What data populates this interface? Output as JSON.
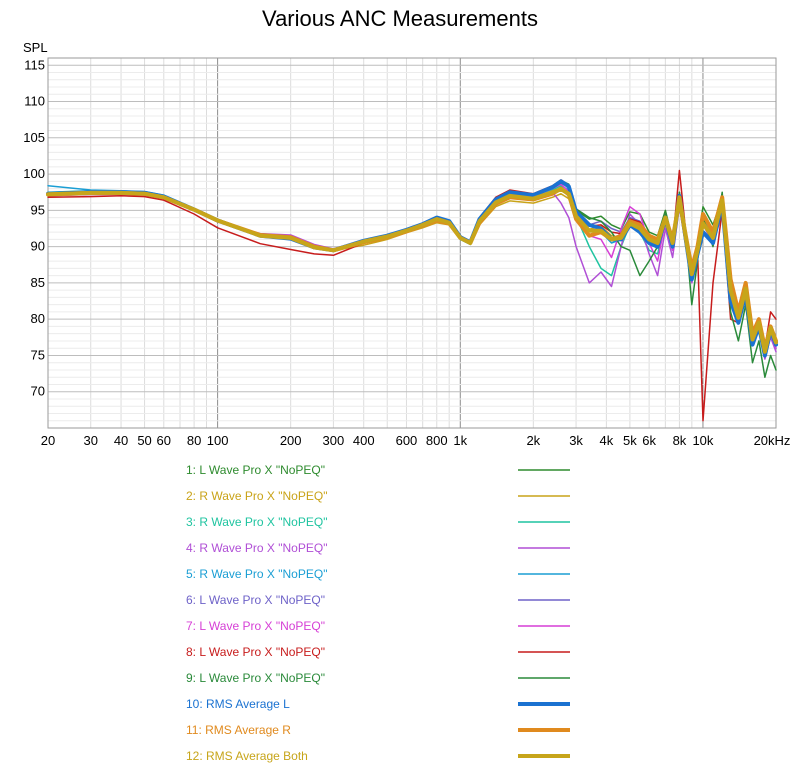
{
  "chart_data": {
    "type": "line",
    "title": "Various ANC Measurements",
    "ylabel": "SPL",
    "xlabel": "",
    "xscale": "log",
    "xlim": [
      20,
      20000
    ],
    "ylim": [
      65,
      116
    ],
    "grid": true,
    "legend_placement": "below",
    "x_ticks": [
      20,
      30,
      40,
      50,
      60,
      80,
      100,
      200,
      300,
      400,
      600,
      800,
      1000,
      2000,
      3000,
      4000,
      5000,
      6000,
      8000,
      10000,
      20000
    ],
    "x_tick_labels": [
      "20",
      "30",
      "40",
      "50",
      "60",
      "80",
      "100",
      "200",
      "300",
      "400",
      "600",
      "800",
      "1k",
      "2k",
      "3k",
      "4k",
      "5k",
      "6k",
      "8k",
      "10k",
      "20kHz"
    ],
    "y_ticks": [
      70,
      75,
      80,
      85,
      90,
      95,
      100,
      105,
      110,
      115
    ],
    "y_tick_labels": [
      "70",
      "75",
      "80",
      "85",
      "90",
      "95",
      "100",
      "105",
      "110",
      "115"
    ],
    "x": [
      20,
      30,
      40,
      50,
      60,
      80,
      100,
      150,
      200,
      250,
      300,
      400,
      500,
      600,
      700,
      800,
      900,
      1000,
      1100,
      1200,
      1400,
      1600,
      2000,
      2400,
      2600,
      2800,
      3000,
      3400,
      3800,
      4200,
      4600,
      5000,
      5500,
      6000,
      6500,
      7000,
      7500,
      8000,
      8500,
      9000,
      9500,
      10000,
      11000,
      12000,
      13000,
      14000,
      15000,
      16000,
      17000,
      18000,
      19000,
      20000
    ],
    "series": [
      {
        "name": "1: L Wave Pro X \"NoPEQ\"",
        "color": "#2e8b2e",
        "width": 1.5,
        "values": [
          97.2,
          97.4,
          97.5,
          97.4,
          96.9,
          95.1,
          93.6,
          91.5,
          91.0,
          89.9,
          89.6,
          90.8,
          91.5,
          92.3,
          93.2,
          94.1,
          93.6,
          91.5,
          90.5,
          93.8,
          96.5,
          97.3,
          97.0,
          98.3,
          99.0,
          98.5,
          95.0,
          93.8,
          94.2,
          93.0,
          92.4,
          94.8,
          94.5,
          92.0,
          91.5,
          95.0,
          91.0,
          97.5,
          92.0,
          87.0,
          90.5,
          95.5,
          93.0,
          96.8,
          86.0,
          81.0,
          85.0,
          78.0,
          80.0,
          76.0,
          79.0,
          77.0
        ]
      },
      {
        "name": "2: R Wave Pro X \"NoPEQ\"",
        "color": "#c9a318",
        "width": 1.5,
        "values": [
          97.0,
          97.2,
          97.2,
          97.1,
          96.6,
          95.0,
          93.5,
          91.6,
          91.2,
          90.1,
          89.5,
          90.2,
          91.0,
          91.9,
          92.6,
          93.3,
          93.0,
          91.2,
          90.8,
          93.0,
          95.5,
          96.3,
          96.0,
          96.8,
          97.3,
          96.6,
          94.0,
          92.4,
          92.8,
          91.5,
          91.2,
          92.8,
          92.6,
          90.8,
          90.2,
          93.0,
          89.8,
          95.5,
          90.5,
          86.5,
          89.5,
          93.5,
          91.0,
          95.0,
          85.0,
          80.5,
          84.0,
          77.0,
          79.0,
          75.5,
          78.0,
          76.5
        ]
      },
      {
        "name": "3: R Wave Pro X \"NoPEQ\"",
        "color": "#1fc4a0",
        "width": 1.5,
        "values": [
          97.5,
          97.7,
          97.6,
          97.5,
          97.0,
          95.2,
          93.7,
          91.4,
          91.0,
          89.8,
          89.4,
          90.6,
          91.3,
          92.2,
          93.0,
          93.9,
          93.4,
          91.0,
          90.3,
          93.4,
          96.2,
          97.0,
          96.6,
          97.8,
          98.4,
          97.8,
          94.2,
          90.0,
          87.0,
          86.0,
          90.0,
          93.0,
          92.0,
          89.5,
          89.0,
          93.5,
          89.5,
          96.5,
          91.0,
          86.0,
          89.0,
          94.0,
          91.5,
          95.5,
          85.5,
          80.5,
          84.5,
          77.5,
          79.5,
          75.0,
          78.5,
          76.0
        ]
      },
      {
        "name": "4: R Wave Pro X \"NoPEQ\"",
        "color": "#b04fd6",
        "width": 1.5,
        "values": [
          97.3,
          97.5,
          97.5,
          97.3,
          96.8,
          95.0,
          93.4,
          91.8,
          91.6,
          90.3,
          89.7,
          90.9,
          91.6,
          92.4,
          93.2,
          94.0,
          93.5,
          91.3,
          90.6,
          93.6,
          96.3,
          97.2,
          96.9,
          97.5,
          96.0,
          94.0,
          90.0,
          85.0,
          86.5,
          84.5,
          90.0,
          94.5,
          93.0,
          89.0,
          86.0,
          92.5,
          88.5,
          95.5,
          90.0,
          85.0,
          88.5,
          93.0,
          90.5,
          94.5,
          84.0,
          80.0,
          83.5,
          76.5,
          78.5,
          74.5,
          77.5,
          75.5
        ]
      },
      {
        "name": "5: R Wave Pro X \"NoPEQ\"",
        "color": "#1a9ed4",
        "width": 1.5,
        "values": [
          98.4,
          97.8,
          97.7,
          97.6,
          97.1,
          95.3,
          93.8,
          91.6,
          91.3,
          90.0,
          89.5,
          90.7,
          91.4,
          92.2,
          93.0,
          93.8,
          93.3,
          91.2,
          90.4,
          93.5,
          96.4,
          97.4,
          97.1,
          98.2,
          99.0,
          98.0,
          94.5,
          91.5,
          92.0,
          90.5,
          91.0,
          93.0,
          92.5,
          90.5,
          89.8,
          94.0,
          90.0,
          96.5,
          91.0,
          86.0,
          89.0,
          94.0,
          91.5,
          95.5,
          85.0,
          80.5,
          84.0,
          77.0,
          79.5,
          75.5,
          78.0,
          76.0
        ]
      },
      {
        "name": "6: L Wave Pro X \"NoPEQ\"",
        "color": "#6e62c8",
        "width": 1.5,
        "values": [
          97.1,
          97.3,
          97.3,
          97.2,
          96.7,
          95.0,
          93.5,
          91.5,
          91.1,
          89.9,
          89.5,
          90.8,
          91.5,
          92.3,
          93.1,
          94.0,
          93.5,
          91.3,
          90.5,
          93.7,
          96.4,
          97.3,
          96.9,
          98.0,
          98.8,
          98.2,
          94.8,
          93.0,
          93.5,
          92.5,
          92.0,
          94.0,
          93.5,
          91.5,
          90.8,
          94.5,
          90.5,
          97.0,
          91.5,
          86.5,
          89.5,
          94.5,
          92.0,
          96.0,
          85.5,
          80.5,
          84.5,
          77.5,
          79.5,
          75.5,
          78.5,
          76.5
        ]
      },
      {
        "name": "7: L Wave Pro X \"NoPEQ\"",
        "color": "#d63fd6",
        "width": 1.5,
        "values": [
          97.0,
          97.2,
          97.2,
          97.1,
          96.6,
          95.0,
          93.5,
          91.7,
          91.5,
          90.2,
          89.6,
          90.8,
          91.6,
          92.4,
          93.2,
          94.1,
          93.6,
          91.4,
          90.6,
          93.7,
          96.4,
          97.3,
          97.0,
          98.0,
          98.6,
          97.6,
          94.2,
          91.5,
          91.0,
          88.5,
          92.5,
          95.5,
          94.5,
          90.5,
          88.0,
          93.5,
          89.5,
          96.5,
          90.5,
          85.5,
          89.0,
          93.5,
          91.0,
          95.0,
          84.5,
          80.0,
          84.0,
          77.0,
          79.0,
          75.0,
          78.0,
          76.0
        ]
      },
      {
        "name": "8: L Wave Pro X \"NoPEQ\"",
        "color": "#c71c1c",
        "width": 1.5,
        "values": [
          96.8,
          96.9,
          97.0,
          96.9,
          96.4,
          94.5,
          92.6,
          90.4,
          89.6,
          89.0,
          88.8,
          90.5,
          91.2,
          92.0,
          92.9,
          93.8,
          93.3,
          91.3,
          90.7,
          94.0,
          96.8,
          97.8,
          97.3,
          98.4,
          99.2,
          98.5,
          94.6,
          92.8,
          93.0,
          92.0,
          91.8,
          93.8,
          93.4,
          91.4,
          90.6,
          94.2,
          90.4,
          100.5,
          92.0,
          86.0,
          89.5,
          66.0,
          85.0,
          95.0,
          80.0,
          79.5,
          84.0,
          77.0,
          80.0,
          76.0,
          81.0,
          80.0
        ]
      },
      {
        "name": "9: L Wave Pro X \"NoPEQ\"",
        "color": "#2a8a3a",
        "width": 1.5,
        "values": [
          97.3,
          97.5,
          97.5,
          97.4,
          96.9,
          95.1,
          93.6,
          91.5,
          91.1,
          90.0,
          89.6,
          90.9,
          91.6,
          92.4,
          93.2,
          94.1,
          93.6,
          91.4,
          90.6,
          93.8,
          96.5,
          97.4,
          97.1,
          98.3,
          99.1,
          98.6,
          95.2,
          94.0,
          93.5,
          92.0,
          90.0,
          89.5,
          86.0,
          88.0,
          90.0,
          94.5,
          90.5,
          97.5,
          91.5,
          82.0,
          88.0,
          94.0,
          90.0,
          97.5,
          81.0,
          77.0,
          82.0,
          74.0,
          77.0,
          72.0,
          75.0,
          73.0
        ]
      },
      {
        "name": "10: RMS Average L",
        "color": "#1a72d1",
        "width": 4,
        "values": [
          97.3,
          97.5,
          97.5,
          97.4,
          96.9,
          95.1,
          93.6,
          91.5,
          91.1,
          89.9,
          89.5,
          90.8,
          91.5,
          92.3,
          93.1,
          94.0,
          93.5,
          91.3,
          90.6,
          93.8,
          96.5,
          97.5,
          97.1,
          98.2,
          99.0,
          98.3,
          94.8,
          93.0,
          92.5,
          91.0,
          91.0,
          93.0,
          92.0,
          90.5,
          90.0,
          94.0,
          90.0,
          97.0,
          91.0,
          85.5,
          89.0,
          92.0,
          90.5,
          96.0,
          82.5,
          79.5,
          83.5,
          76.5,
          79.0,
          75.0,
          78.5,
          76.5
        ]
      },
      {
        "name": "11: RMS Average R",
        "color": "#e08a1e",
        "width": 4,
        "values": [
          97.2,
          97.4,
          97.4,
          97.3,
          96.8,
          95.1,
          93.6,
          91.6,
          91.3,
          90.0,
          89.5,
          90.6,
          91.3,
          92.1,
          92.9,
          93.6,
          93.2,
          91.2,
          90.5,
          93.3,
          95.9,
          96.8,
          96.5,
          97.3,
          98.0,
          97.2,
          93.8,
          91.5,
          92.0,
          91.0,
          91.5,
          93.5,
          93.0,
          91.5,
          91.0,
          94.0,
          91.0,
          96.5,
          91.5,
          87.0,
          90.0,
          94.5,
          92.0,
          96.8,
          85.5,
          81.0,
          85.0,
          78.0,
          80.0,
          76.0,
          79.0,
          77.0
        ]
      },
      {
        "name": "12: RMS Average Both",
        "color": "#c7a51a",
        "width": 4,
        "values": [
          97.2,
          97.4,
          97.4,
          97.3,
          96.8,
          95.1,
          93.6,
          91.5,
          91.2,
          89.9,
          89.5,
          90.7,
          91.4,
          92.2,
          93.0,
          93.8,
          93.3,
          91.2,
          90.5,
          93.5,
          96.1,
          97.0,
          96.6,
          97.5,
          97.9,
          97.3,
          94.2,
          92.2,
          92.2,
          91.0,
          91.2,
          93.2,
          92.5,
          91.0,
          90.5,
          94.0,
          90.5,
          96.8,
          91.2,
          86.2,
          89.5,
          93.2,
          91.2,
          96.4,
          84.0,
          80.2,
          84.2,
          77.2,
          79.5,
          75.5,
          78.8,
          76.8
        ]
      }
    ]
  }
}
